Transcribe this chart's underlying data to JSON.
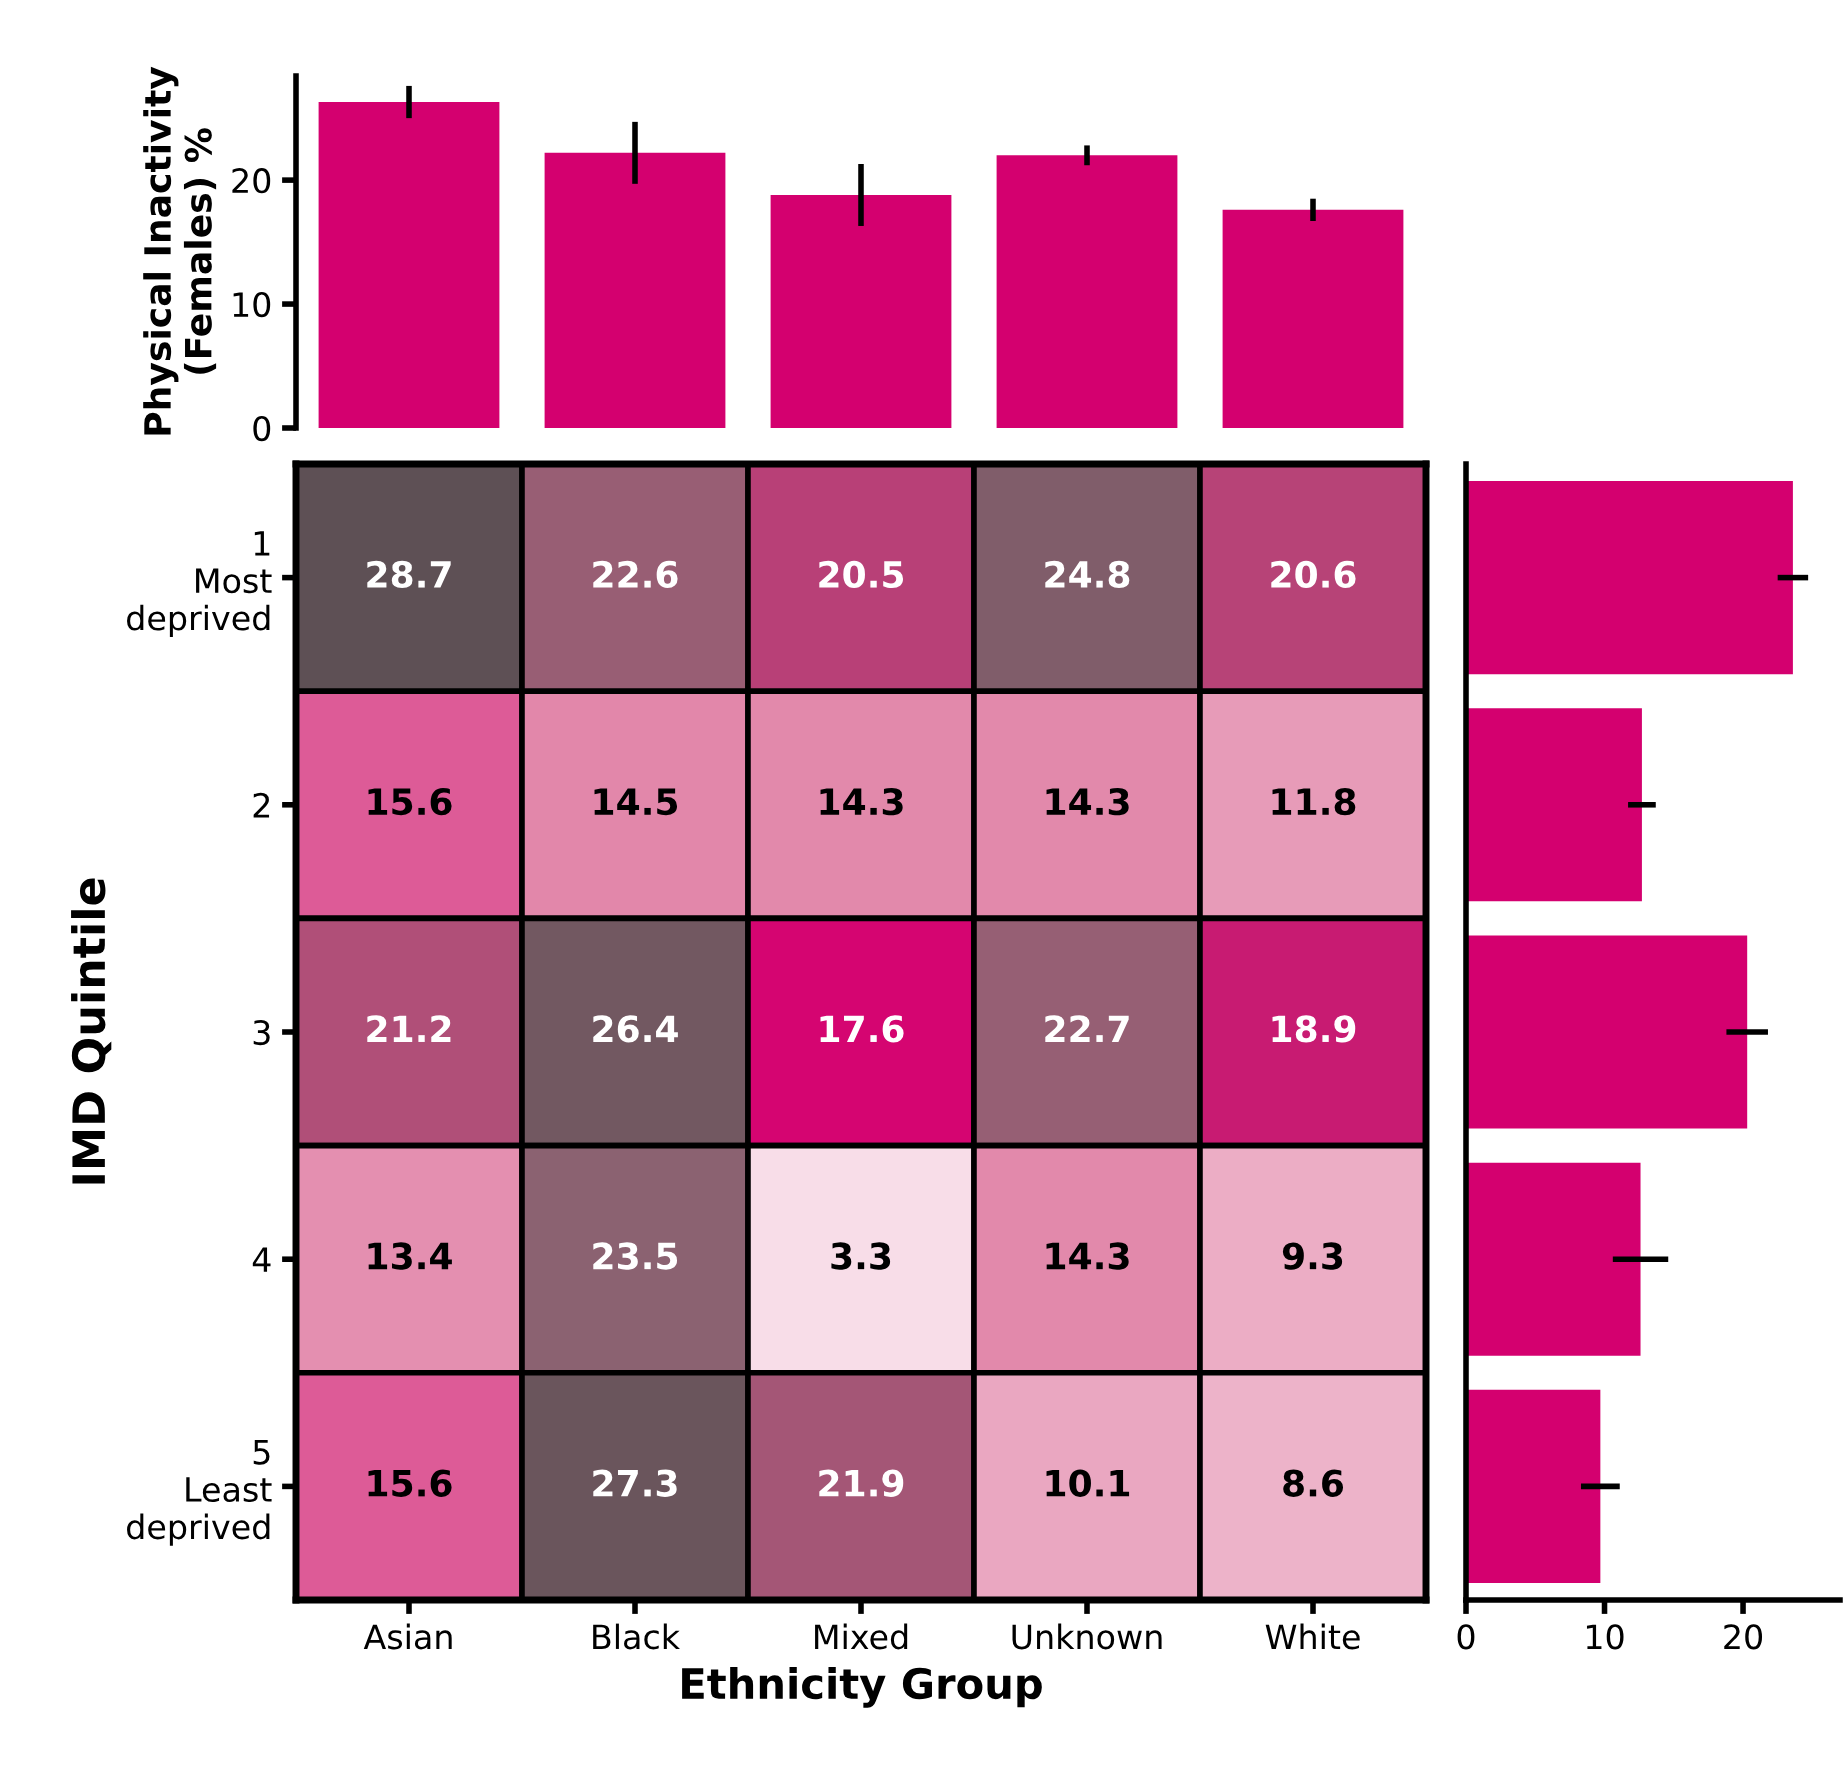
{
  "chart_data": [
    {
      "type": "bar",
      "ylabel": "Physical Inactivity\n(Females) %",
      "categories": [
        null,
        null,
        null,
        null,
        null
      ],
      "values": [
        26.3,
        22.2,
        18.8,
        22.0,
        17.6
      ],
      "errors": [
        1.3,
        2.5,
        2.5,
        0.8,
        0.9
      ],
      "color": "#d4006f",
      "ylim": [
        0,
        28.4
      ],
      "yticks": [
        0,
        10,
        20
      ],
      "tick_labels": "y",
      "grid": false
    },
    {
      "type": "heatmap",
      "xlabel": "Ethnicity Group",
      "ylabel": "IMD Quintile",
      "categories": [
        "Asian",
        "Black",
        "Mixed",
        "Unknown",
        "White"
      ],
      "y_categories": [
        "1\nMost\ndeprived",
        "2",
        "3",
        "4",
        "5\nLeast\ndeprived"
      ],
      "cells": [
        [
          28.7,
          22.6,
          20.5,
          24.8,
          20.6
        ],
        [
          15.6,
          14.5,
          14.3,
          14.3,
          11.8
        ],
        [
          21.2,
          26.4,
          17.6,
          22.7,
          18.9
        ],
        [
          13.4,
          23.5,
          3.3,
          14.3,
          9.3
        ],
        [
          15.6,
          27.3,
          21.9,
          10.1,
          8.6
        ]
      ],
      "data_labels": true
    },
    {
      "type": "bar",
      "orientation": "horizontal",
      "categories": [
        null,
        null,
        null,
        null,
        null
      ],
      "values": [
        23.6,
        12.7,
        20.3,
        12.6,
        9.7
      ],
      "errors": [
        1.1,
        1.0,
        1.5,
        2.0,
        1.4
      ],
      "color": "#d4006f",
      "xlim": [
        0,
        27
      ],
      "xticks": [
        0,
        10,
        20
      ],
      "tick_labels": "x",
      "grid": false
    }
  ]
}
